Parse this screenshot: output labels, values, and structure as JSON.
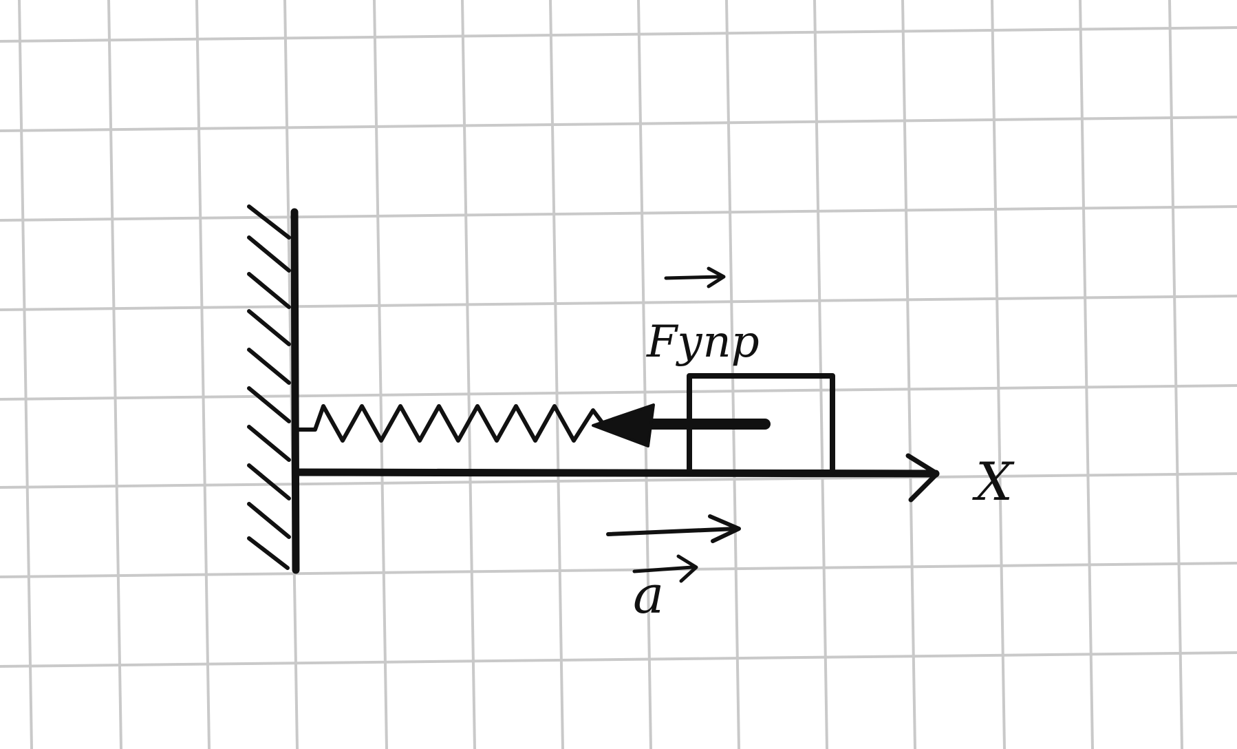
{
  "paper": {
    "background": "#ffffff",
    "grid_color": "#c9c9c9",
    "ink_color": "#111111"
  },
  "labels": {
    "force": "Fупр",
    "acceleration": "a",
    "axis": "X"
  }
}
